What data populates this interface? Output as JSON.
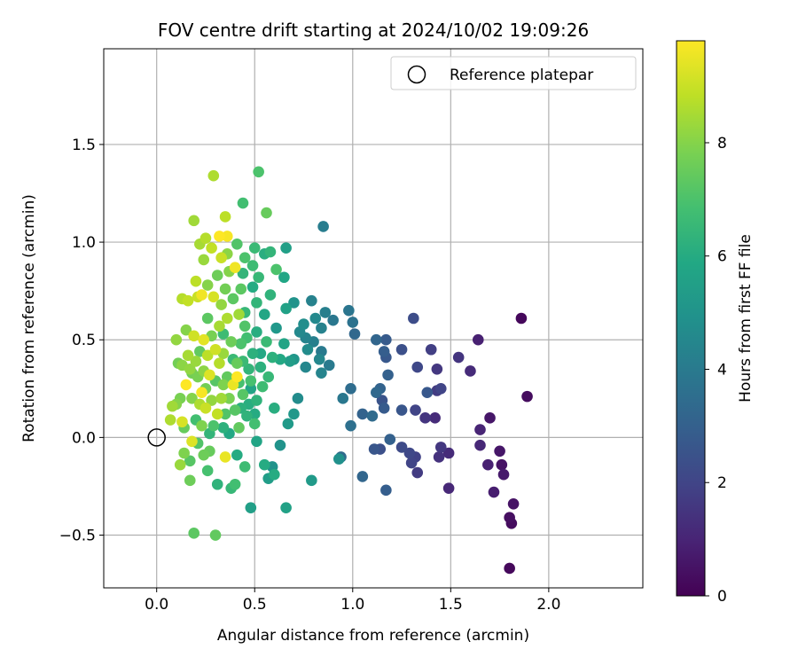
{
  "chart_data": {
    "type": "scatter",
    "title": "FOV centre drift starting at 2024/10/02 19:09:26",
    "xlabel": "Angular distance from reference (arcmin)",
    "ylabel": "Rotation from reference (arcmin)",
    "xlim": [
      -0.27,
      2.48
    ],
    "ylim": [
      -0.77,
      1.99
    ],
    "xticks": [
      0.0,
      0.5,
      1.0,
      1.5,
      2.0
    ],
    "xtick_labels": [
      "0.0",
      "0.5",
      "1.0",
      "1.5",
      "2.0"
    ],
    "yticks": [
      -0.5,
      0.0,
      0.5,
      1.0,
      1.5
    ],
    "ytick_labels": [
      "−0.5",
      "0.0",
      "0.5",
      "1.0",
      "1.5"
    ],
    "grid": true,
    "legend": {
      "placement": "top-right",
      "entries": [
        {
          "label": "Reference platepar",
          "marker": "open-circle"
        }
      ]
    },
    "reference_point": {
      "x": 0.0,
      "y": 0.0
    },
    "colorbar": {
      "label": "Hours from first FF file",
      "colormap": "viridis",
      "range": [
        0,
        9.8
      ],
      "ticks": [
        0,
        2,
        4,
        6,
        8
      ],
      "tick_labels": [
        "0",
        "2",
        "4",
        "6",
        "8"
      ]
    },
    "points": [
      {
        "x": 1.86,
        "y": 0.61,
        "c": 0.2
      },
      {
        "x": 1.89,
        "y": 0.21,
        "c": 0.3
      },
      {
        "x": 1.8,
        "y": -0.67,
        "c": 0.2
      },
      {
        "x": 1.81,
        "y": -0.44,
        "c": 0.3
      },
      {
        "x": 1.8,
        "y": -0.41,
        "c": 0.4
      },
      {
        "x": 1.82,
        "y": -0.34,
        "c": 0.5
      },
      {
        "x": 1.76,
        "y": -0.14,
        "c": 0.5
      },
      {
        "x": 1.75,
        "y": -0.07,
        "c": 0.6
      },
      {
        "x": 1.77,
        "y": -0.19,
        "c": 0.7
      },
      {
        "x": 1.72,
        "y": -0.28,
        "c": 0.8
      },
      {
        "x": 1.7,
        "y": 0.1,
        "c": 0.6
      },
      {
        "x": 1.69,
        "y": -0.14,
        "c": 0.9
      },
      {
        "x": 1.64,
        "y": 0.5,
        "c": 0.9
      },
      {
        "x": 1.65,
        "y": 0.04,
        "c": 1.0
      },
      {
        "x": 1.65,
        "y": -0.04,
        "c": 1.1
      },
      {
        "x": 1.49,
        "y": -0.26,
        "c": 1.1
      },
      {
        "x": 1.6,
        "y": 0.34,
        "c": 1.2
      },
      {
        "x": 1.54,
        "y": 0.41,
        "c": 1.5
      },
      {
        "x": 1.49,
        "y": -0.08,
        "c": 1.2
      },
      {
        "x": 1.45,
        "y": -0.05,
        "c": 1.6
      },
      {
        "x": 1.44,
        "y": -0.1,
        "c": 1.4
      },
      {
        "x": 1.42,
        "y": 0.1,
        "c": 1.2
      },
      {
        "x": 1.43,
        "y": 0.24,
        "c": 1.7
      },
      {
        "x": 1.45,
        "y": 0.25,
        "c": 2.0
      },
      {
        "x": 1.4,
        "y": 0.45,
        "c": 1.8
      },
      {
        "x": 1.43,
        "y": 0.35,
        "c": 1.6
      },
      {
        "x": 1.37,
        "y": 0.1,
        "c": 1.5
      },
      {
        "x": 1.33,
        "y": 0.36,
        "c": 2.1
      },
      {
        "x": 1.32,
        "y": 0.14,
        "c": 2.0
      },
      {
        "x": 1.31,
        "y": 0.61,
        "c": 2.3
      },
      {
        "x": 1.33,
        "y": -0.18,
        "c": 1.7
      },
      {
        "x": 1.32,
        "y": -0.1,
        "c": 1.9
      },
      {
        "x": 1.3,
        "y": -0.13,
        "c": 2.0
      },
      {
        "x": 1.29,
        "y": -0.08,
        "c": 2.1
      },
      {
        "x": 1.25,
        "y": -0.05,
        "c": 2.2
      },
      {
        "x": 1.25,
        "y": 0.45,
        "c": 2.4
      },
      {
        "x": 1.25,
        "y": 0.14,
        "c": 2.6
      },
      {
        "x": 1.38,
        "y": 0.23,
        "c": 2.7
      },
      {
        "x": 1.17,
        "y": 0.5,
        "c": 2.8
      },
      {
        "x": 1.16,
        "y": 0.44,
        "c": 2.9
      },
      {
        "x": 1.17,
        "y": 0.41,
        "c": 2.7
      },
      {
        "x": 1.18,
        "y": 0.32,
        "c": 3.0
      },
      {
        "x": 1.14,
        "y": 0.25,
        "c": 3.1
      },
      {
        "x": 1.12,
        "y": 0.5,
        "c": 3.2
      },
      {
        "x": 1.16,
        "y": 0.15,
        "c": 2.8
      },
      {
        "x": 1.15,
        "y": 0.19,
        "c": 2.5
      },
      {
        "x": 1.12,
        "y": 0.23,
        "c": 3.3
      },
      {
        "x": 1.11,
        "y": -0.06,
        "c": 2.6
      },
      {
        "x": 1.14,
        "y": -0.06,
        "c": 2.4
      },
      {
        "x": 1.17,
        "y": -0.27,
        "c": 2.9
      },
      {
        "x": 1.19,
        "y": -0.01,
        "c": 3.0
      },
      {
        "x": 1.1,
        "y": 0.11,
        "c": 3.4
      },
      {
        "x": 1.05,
        "y": 0.12,
        "c": 3.1
      },
      {
        "x": 1.05,
        "y": -0.2,
        "c": 3.2
      },
      {
        "x": 0.99,
        "y": 0.06,
        "c": 3.6
      },
      {
        "x": 0.99,
        "y": 0.25,
        "c": 3.5
      },
      {
        "x": 1.0,
        "y": 0.59,
        "c": 3.7
      },
      {
        "x": 1.01,
        "y": 0.53,
        "c": 3.3
      },
      {
        "x": 0.98,
        "y": 0.65,
        "c": 3.8
      },
      {
        "x": 0.95,
        "y": 0.2,
        "c": 3.9
      },
      {
        "x": 0.93,
        "y": -0.11,
        "c": 4.9
      },
      {
        "x": 0.94,
        "y": -0.1,
        "c": 3.4
      },
      {
        "x": 0.9,
        "y": 0.6,
        "c": 3.9
      },
      {
        "x": 0.88,
        "y": 0.37,
        "c": 4.0
      },
      {
        "x": 0.85,
        "y": 1.08,
        "c": 4.1
      },
      {
        "x": 0.86,
        "y": 0.64,
        "c": 4.2
      },
      {
        "x": 0.84,
        "y": 0.56,
        "c": 4.3
      },
      {
        "x": 0.84,
        "y": 0.44,
        "c": 4.0
      },
      {
        "x": 0.84,
        "y": 0.33,
        "c": 4.4
      },
      {
        "x": 0.83,
        "y": 0.4,
        "c": 4.5
      },
      {
        "x": 0.81,
        "y": 0.61,
        "c": 4.6
      },
      {
        "x": 0.8,
        "y": 0.49,
        "c": 4.2
      },
      {
        "x": 0.79,
        "y": 0.7,
        "c": 4.3
      },
      {
        "x": 0.79,
        "y": -0.22,
        "c": 5.3
      },
      {
        "x": 0.77,
        "y": 0.45,
        "c": 4.7
      },
      {
        "x": 0.76,
        "y": 0.51,
        "c": 4.4
      },
      {
        "x": 0.76,
        "y": 0.36,
        "c": 4.5
      },
      {
        "x": 0.75,
        "y": 0.58,
        "c": 4.8
      },
      {
        "x": 0.73,
        "y": 0.54,
        "c": 4.6
      },
      {
        "x": 0.72,
        "y": 0.2,
        "c": 4.7
      },
      {
        "x": 0.7,
        "y": 0.69,
        "c": 5.0
      },
      {
        "x": 0.7,
        "y": 0.4,
        "c": 5.1
      },
      {
        "x": 0.7,
        "y": 0.12,
        "c": 5.2
      },
      {
        "x": 0.68,
        "y": 0.39,
        "c": 5.4
      },
      {
        "x": 0.67,
        "y": 0.07,
        "c": 5.3
      },
      {
        "x": 0.66,
        "y": 0.97,
        "c": 5.5
      },
      {
        "x": 0.66,
        "y": 0.66,
        "c": 5.6
      },
      {
        "x": 0.66,
        "y": -0.36,
        "c": 5.6
      },
      {
        "x": 0.65,
        "y": 0.48,
        "c": 5.7
      },
      {
        "x": 0.65,
        "y": 0.82,
        "c": 5.8
      },
      {
        "x": 0.63,
        "y": 0.4,
        "c": 5.9
      },
      {
        "x": 0.63,
        "y": -0.04,
        "c": 5.0
      },
      {
        "x": 0.61,
        "y": 0.56,
        "c": 5.2
      },
      {
        "x": 0.61,
        "y": 0.86,
        "c": 7.0
      },
      {
        "x": 0.6,
        "y": 0.15,
        "c": 6.1
      },
      {
        "x": 0.6,
        "y": -0.19,
        "c": 6.0
      },
      {
        "x": 0.59,
        "y": 0.41,
        "c": 6.2
      },
      {
        "x": 0.59,
        "y": -0.15,
        "c": 5.0
      },
      {
        "x": 0.58,
        "y": 0.73,
        "c": 6.3
      },
      {
        "x": 0.58,
        "y": 0.95,
        "c": 6.4
      },
      {
        "x": 0.57,
        "y": -0.21,
        "c": 5.4
      },
      {
        "x": 0.57,
        "y": 0.31,
        "c": 6.5
      },
      {
        "x": 0.56,
        "y": 1.15,
        "c": 7.5
      },
      {
        "x": 0.56,
        "y": 0.49,
        "c": 6.6
      },
      {
        "x": 0.55,
        "y": 0.94,
        "c": 6.1
      },
      {
        "x": 0.55,
        "y": 0.63,
        "c": 5.8
      },
      {
        "x": 0.55,
        "y": -0.14,
        "c": 6.0
      },
      {
        "x": 0.54,
        "y": 0.26,
        "c": 6.7
      },
      {
        "x": 0.53,
        "y": 0.36,
        "c": 6.2
      },
      {
        "x": 0.53,
        "y": 0.43,
        "c": 5.9
      },
      {
        "x": 0.52,
        "y": 1.36,
        "c": 7.0
      },
      {
        "x": 0.52,
        "y": 0.82,
        "c": 6.5
      },
      {
        "x": 0.51,
        "y": 0.69,
        "c": 6.4
      },
      {
        "x": 0.51,
        "y": 0.54,
        "c": 6.1
      },
      {
        "x": 0.51,
        "y": 0.19,
        "c": 6.3
      },
      {
        "x": 0.51,
        "y": -0.02,
        "c": 5.7
      },
      {
        "x": 0.5,
        "y": 0.97,
        "c": 6.6
      },
      {
        "x": 0.5,
        "y": 0.12,
        "c": 6.0
      },
      {
        "x": 0.5,
        "y": 0.07,
        "c": 6.8
      },
      {
        "x": 0.49,
        "y": 0.88,
        "c": 6.7
      },
      {
        "x": 0.49,
        "y": 0.77,
        "c": 6.0
      },
      {
        "x": 0.49,
        "y": 0.43,
        "c": 6.2
      },
      {
        "x": 0.48,
        "y": -0.36,
        "c": 5.5
      },
      {
        "x": 0.48,
        "y": 0.29,
        "c": 6.9
      },
      {
        "x": 0.48,
        "y": 0.25,
        "c": 5.7
      },
      {
        "x": 0.47,
        "y": 0.35,
        "c": 6.4
      },
      {
        "x": 0.47,
        "y": 0.17,
        "c": 6.1
      },
      {
        "x": 0.46,
        "y": 0.51,
        "c": 6.8
      },
      {
        "x": 0.46,
        "y": 0.11,
        "c": 6.3
      },
      {
        "x": 0.45,
        "y": 0.92,
        "c": 7.0
      },
      {
        "x": 0.45,
        "y": 0.64,
        "c": 6.5
      },
      {
        "x": 0.45,
        "y": 0.57,
        "c": 7.1
      },
      {
        "x": 0.45,
        "y": -0.15,
        "c": 6.7
      },
      {
        "x": 0.44,
        "y": 1.2,
        "c": 6.8
      },
      {
        "x": 0.44,
        "y": 0.84,
        "c": 6.4
      },
      {
        "x": 0.44,
        "y": 0.39,
        "c": 6.6
      },
      {
        "x": 0.44,
        "y": 0.22,
        "c": 7.2
      },
      {
        "x": 0.43,
        "y": 0.76,
        "c": 7.3
      },
      {
        "x": 0.43,
        "y": 0.48,
        "c": 7.0
      },
      {
        "x": 0.43,
        "y": 0.15,
        "c": 6.2
      },
      {
        "x": 0.42,
        "y": 0.05,
        "c": 7.4
      },
      {
        "x": 0.42,
        "y": 0.28,
        "c": 6.9
      },
      {
        "x": 0.42,
        "y": 0.63,
        "c": 8.4
      },
      {
        "x": 0.41,
        "y": 0.99,
        "c": 7.1
      },
      {
        "x": 0.41,
        "y": 0.38,
        "c": 7.5
      },
      {
        "x": 0.41,
        "y": -0.09,
        "c": 6.0
      },
      {
        "x": 0.41,
        "y": 0.31,
        "c": 9.8
      },
      {
        "x": 0.4,
        "y": 0.87,
        "c": 9.6
      },
      {
        "x": 0.4,
        "y": 0.14,
        "c": 7.2
      },
      {
        "x": 0.4,
        "y": -0.24,
        "c": 6.8
      },
      {
        "x": 0.39,
        "y": 0.71,
        "c": 7.3
      },
      {
        "x": 0.39,
        "y": 0.27,
        "c": 9.5
      },
      {
        "x": 0.39,
        "y": 0.4,
        "c": 6.6
      },
      {
        "x": 0.38,
        "y": 0.49,
        "c": 7.6
      },
      {
        "x": 0.38,
        "y": -0.26,
        "c": 6.5
      },
      {
        "x": 0.37,
        "y": 0.2,
        "c": 7.8
      },
      {
        "x": 0.37,
        "y": 0.02,
        "c": 5.9
      },
      {
        "x": 0.37,
        "y": 0.85,
        "c": 8.0
      },
      {
        "x": 0.36,
        "y": 1.03,
        "c": 9.7
      },
      {
        "x": 0.36,
        "y": 0.61,
        "c": 8.6
      },
      {
        "x": 0.36,
        "y": 0.31,
        "c": 7.4
      },
      {
        "x": 0.36,
        "y": 0.94,
        "c": 8.1
      },
      {
        "x": 0.35,
        "y": 0.12,
        "c": 7.1
      },
      {
        "x": 0.35,
        "y": -0.1,
        "c": 9.5
      },
      {
        "x": 0.35,
        "y": 1.13,
        "c": 8.8
      },
      {
        "x": 0.35,
        "y": 0.76,
        "c": 7.7
      },
      {
        "x": 0.34,
        "y": 0.53,
        "c": 6.7
      },
      {
        "x": 0.34,
        "y": 0.43,
        "c": 8.3
      },
      {
        "x": 0.34,
        "y": 0.27,
        "c": 7.9
      },
      {
        "x": 0.34,
        "y": 0.05,
        "c": 6.2
      },
      {
        "x": 0.33,
        "y": 0.92,
        "c": 9.0
      },
      {
        "x": 0.33,
        "y": 0.68,
        "c": 8.2
      },
      {
        "x": 0.33,
        "y": 0.2,
        "c": 8.4
      },
      {
        "x": 0.32,
        "y": 1.03,
        "c": 9.8
      },
      {
        "x": 0.32,
        "y": 0.57,
        "c": 8.5
      },
      {
        "x": 0.32,
        "y": 0.38,
        "c": 8.7
      },
      {
        "x": 0.31,
        "y": -0.24,
        "c": 6.3
      },
      {
        "x": 0.31,
        "y": 0.12,
        "c": 8.9
      },
      {
        "x": 0.31,
        "y": 0.83,
        "c": 7.6
      },
      {
        "x": 0.3,
        "y": -0.5,
        "c": 7.4
      },
      {
        "x": 0.3,
        "y": 0.45,
        "c": 9.1
      },
      {
        "x": 0.3,
        "y": 0.29,
        "c": 7.2
      },
      {
        "x": 0.29,
        "y": 1.34,
        "c": 8.6
      },
      {
        "x": 0.29,
        "y": 0.72,
        "c": 9.2
      },
      {
        "x": 0.29,
        "y": 0.06,
        "c": 7.0
      },
      {
        "x": 0.28,
        "y": 0.97,
        "c": 8.9
      },
      {
        "x": 0.28,
        "y": 0.52,
        "c": 7.8
      },
      {
        "x": 0.28,
        "y": 0.19,
        "c": 8.2
      },
      {
        "x": 0.27,
        "y": -0.07,
        "c": 7.5
      },
      {
        "x": 0.27,
        "y": 0.32,
        "c": 9.3
      },
      {
        "x": 0.27,
        "y": 0.02,
        "c": 6.4
      },
      {
        "x": 0.26,
        "y": 0.78,
        "c": 8.0
      },
      {
        "x": 0.26,
        "y": 0.61,
        "c": 7.3
      },
      {
        "x": 0.26,
        "y": 0.42,
        "c": 8.8
      },
      {
        "x": 0.26,
        "y": -0.17,
        "c": 6.9
      },
      {
        "x": 0.25,
        "y": 1.02,
        "c": 8.7
      },
      {
        "x": 0.25,
        "y": 0.25,
        "c": 7.7
      },
      {
        "x": 0.25,
        "y": 0.15,
        "c": 9.0
      },
      {
        "x": 0.24,
        "y": 0.91,
        "c": 8.3
      },
      {
        "x": 0.24,
        "y": 0.5,
        "c": 9.4
      },
      {
        "x": 0.24,
        "y": 0.34,
        "c": 8.1
      },
      {
        "x": 0.24,
        "y": -0.09,
        "c": 7.6
      },
      {
        "x": 0.23,
        "y": 0.73,
        "c": 9.6
      },
      {
        "x": 0.23,
        "y": 0.23,
        "c": 9.7
      },
      {
        "x": 0.23,
        "y": 0.06,
        "c": 7.9
      },
      {
        "x": 0.22,
        "y": 0.99,
        "c": 8.5
      },
      {
        "x": 0.22,
        "y": 0.44,
        "c": 7.4
      },
      {
        "x": 0.22,
        "y": 0.17,
        "c": 8.6
      },
      {
        "x": 0.21,
        "y": 0.72,
        "c": 9.0
      },
      {
        "x": 0.21,
        "y": 0.31,
        "c": 7.8
      },
      {
        "x": 0.21,
        "y": -0.03,
        "c": 7.1
      },
      {
        "x": 0.2,
        "y": 0.8,
        "c": 8.8
      },
      {
        "x": 0.2,
        "y": 0.39,
        "c": 8.3
      },
      {
        "x": 0.2,
        "y": 0.09,
        "c": 6.8
      },
      {
        "x": 0.19,
        "y": 1.11,
        "c": 8.4
      },
      {
        "x": 0.19,
        "y": 0.52,
        "c": 9.1
      },
      {
        "x": 0.19,
        "y": -0.49,
        "c": 7.3
      },
      {
        "x": 0.18,
        "y": 0.33,
        "c": 7.7
      },
      {
        "x": 0.18,
        "y": 0.2,
        "c": 8.0
      },
      {
        "x": 0.18,
        "y": -0.02,
        "c": 9.3
      },
      {
        "x": 0.17,
        "y": -0.12,
        "c": 7.2
      },
      {
        "x": 0.17,
        "y": 0.35,
        "c": 8.2
      },
      {
        "x": 0.17,
        "y": -0.22,
        "c": 7.6
      },
      {
        "x": 0.16,
        "y": 0.7,
        "c": 8.9
      },
      {
        "x": 0.16,
        "y": 0.42,
        "c": 8.5
      },
      {
        "x": 0.15,
        "y": 0.55,
        "c": 8.0
      },
      {
        "x": 0.15,
        "y": 0.27,
        "c": 9.9
      },
      {
        "x": 0.14,
        "y": 0.05,
        "c": 7.5
      },
      {
        "x": 0.14,
        "y": -0.08,
        "c": 7.9
      },
      {
        "x": 0.13,
        "y": 0.71,
        "c": 8.7
      },
      {
        "x": 0.13,
        "y": 0.08,
        "c": 9.2
      },
      {
        "x": 0.13,
        "y": 0.37,
        "c": 8.1
      },
      {
        "x": 0.12,
        "y": 0.2,
        "c": 7.8
      },
      {
        "x": 0.12,
        "y": -0.14,
        "c": 8.3
      },
      {
        "x": 0.11,
        "y": 0.38,
        "c": 7.7
      },
      {
        "x": 0.1,
        "y": 0.5,
        "c": 8.2
      },
      {
        "x": 0.1,
        "y": 0.17,
        "c": 8.0
      },
      {
        "x": 0.08,
        "y": 0.16,
        "c": 8.4
      },
      {
        "x": 0.07,
        "y": 0.09,
        "c": 8.6
      }
    ]
  }
}
